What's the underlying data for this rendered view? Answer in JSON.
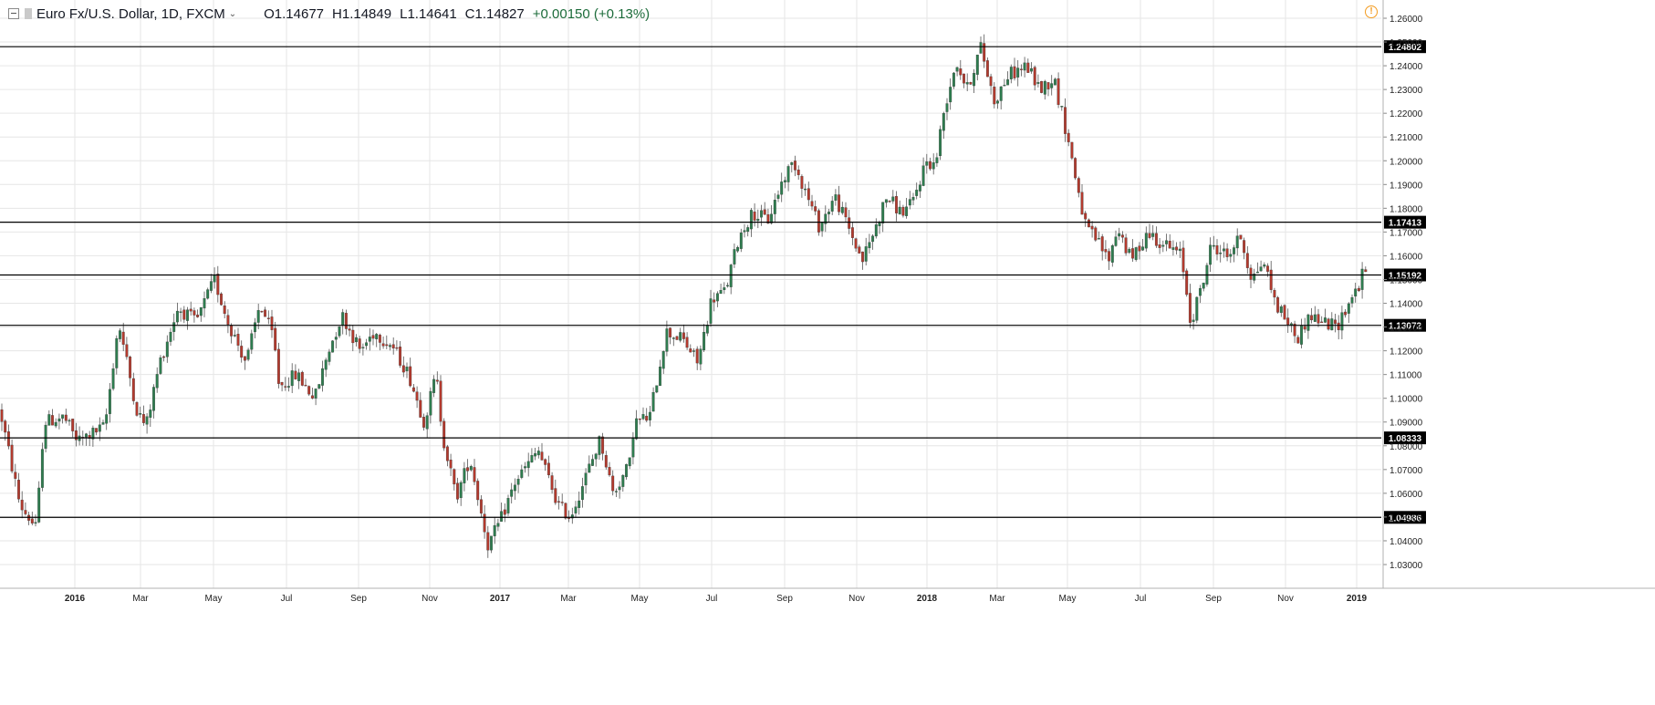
{
  "header": {
    "title": "Euro Fx/U.S. Dollar, 1D, FXCM",
    "chevron": "⌄",
    "ohlc": [
      {
        "key": "O",
        "value": "1.14677"
      },
      {
        "key": "H",
        "value": "1.14849"
      },
      {
        "key": "L",
        "value": "1.14641"
      },
      {
        "key": "C",
        "value": "1.14827"
      }
    ],
    "change": "+0.00150 (+0.13%)",
    "warning_icon": "warning-icon",
    "warning_glyph": "!"
  },
  "colors": {
    "up": "#2e7d4f",
    "down": "#b33a2e",
    "grid": "#e6e6e6",
    "hline": "#000000",
    "wick": "#555555"
  },
  "chart_data": {
    "type": "candlestick",
    "title": "Euro Fx/U.S. Dollar, 1D, FXCM",
    "ylim": [
      1.025,
      1.264
    ],
    "y_ticks": [
      "1.26000",
      "1.25000",
      "1.24000",
      "1.23000",
      "1.22000",
      "1.21000",
      "1.20000",
      "1.19000",
      "1.18000",
      "1.17000",
      "1.16000",
      "1.15000",
      "1.14000",
      "1.13000",
      "1.12000",
      "1.11000",
      "1.10000",
      "1.09000",
      "1.08000",
      "1.07000",
      "1.06000",
      "1.05000",
      "1.04000",
      "1.03000"
    ],
    "x_ticks": [
      {
        "label": "2016",
        "bold": true
      },
      {
        "label": "Mar",
        "bold": false
      },
      {
        "label": "May",
        "bold": false
      },
      {
        "label": "Jul",
        "bold": false
      },
      {
        "label": "Sep",
        "bold": false
      },
      {
        "label": "Nov",
        "bold": false
      },
      {
        "label": "2017",
        "bold": true
      },
      {
        "label": "Mar",
        "bold": false
      },
      {
        "label": "May",
        "bold": false
      },
      {
        "label": "Jul",
        "bold": false
      },
      {
        "label": "Sep",
        "bold": false
      },
      {
        "label": "Nov",
        "bold": false
      },
      {
        "label": "2018",
        "bold": true
      },
      {
        "label": "Mar",
        "bold": false
      },
      {
        "label": "May",
        "bold": false
      },
      {
        "label": "Jul",
        "bold": false
      },
      {
        "label": "Sep",
        "bold": false
      },
      {
        "label": "Nov",
        "bold": false
      },
      {
        "label": "2019",
        "bold": true
      }
    ],
    "horizontal_levels": [
      "1.24802",
      "1.17413",
      "1.15192",
      "1.13072",
      "1.08333",
      "1.04986"
    ],
    "price_path": [
      [
        0,
        1.095
      ],
      [
        22,
        1.055
      ],
      [
        40,
        1.045
      ],
      [
        48,
        1.09
      ],
      [
        70,
        1.092
      ],
      [
        85,
        1.082
      ],
      [
        115,
        1.088
      ],
      [
        130,
        1.132
      ],
      [
        150,
        1.095
      ],
      [
        160,
        1.088
      ],
      [
        175,
        1.115
      ],
      [
        195,
        1.138
      ],
      [
        215,
        1.132
      ],
      [
        235,
        1.15
      ],
      [
        250,
        1.132
      ],
      [
        270,
        1.115
      ],
      [
        285,
        1.14
      ],
      [
        300,
        1.125
      ],
      [
        306,
        1.105
      ],
      [
        325,
        1.11
      ],
      [
        345,
        1.1
      ],
      [
        360,
        1.12
      ],
      [
        375,
        1.135
      ],
      [
        395,
        1.12
      ],
      [
        410,
        1.128
      ],
      [
        430,
        1.122
      ],
      [
        448,
        1.11
      ],
      [
        465,
        1.09
      ],
      [
        478,
        1.11
      ],
      [
        485,
        1.085
      ],
      [
        500,
        1.058
      ],
      [
        515,
        1.075
      ],
      [
        535,
        1.038
      ],
      [
        548,
        1.048
      ],
      [
        565,
        1.065
      ],
      [
        590,
        1.078
      ],
      [
        612,
        1.055
      ],
      [
        625,
        1.05
      ],
      [
        640,
        1.065
      ],
      [
        658,
        1.083
      ],
      [
        672,
        1.06
      ],
      [
        690,
        1.072
      ],
      [
        695,
        1.09
      ],
      [
        712,
        1.092
      ],
      [
        730,
        1.128
      ],
      [
        748,
        1.125
      ],
      [
        765,
        1.115
      ],
      [
        780,
        1.142
      ],
      [
        795,
        1.145
      ],
      [
        810,
        1.168
      ],
      [
        825,
        1.178
      ],
      [
        842,
        1.175
      ],
      [
        858,
        1.192
      ],
      [
        870,
        1.2
      ],
      [
        882,
        1.188
      ],
      [
        898,
        1.172
      ],
      [
        915,
        1.185
      ],
      [
        930,
        1.172
      ],
      [
        945,
        1.158
      ],
      [
        960,
        1.172
      ],
      [
        972,
        1.185
      ],
      [
        988,
        1.178
      ],
      [
        1000,
        1.182
      ],
      [
        1015,
        1.2
      ],
      [
        1025,
        1.198
      ],
      [
        1035,
        1.222
      ],
      [
        1048,
        1.242
      ],
      [
        1060,
        1.23
      ],
      [
        1075,
        1.248
      ],
      [
        1090,
        1.225
      ],
      [
        1105,
        1.236
      ],
      [
        1125,
        1.24
      ],
      [
        1140,
        1.23
      ],
      [
        1155,
        1.235
      ],
      [
        1170,
        1.21
      ],
      [
        1190,
        1.172
      ],
      [
        1205,
        1.165
      ],
      [
        1215,
        1.158
      ],
      [
        1225,
        1.172
      ],
      [
        1240,
        1.158
      ],
      [
        1258,
        1.17
      ],
      [
        1275,
        1.165
      ],
      [
        1295,
        1.16
      ],
      [
        1305,
        1.132
      ],
      [
        1318,
        1.148
      ],
      [
        1328,
        1.165
      ],
      [
        1345,
        1.16
      ],
      [
        1360,
        1.168
      ],
      [
        1372,
        1.15
      ],
      [
        1385,
        1.158
      ],
      [
        1398,
        1.14
      ],
      [
        1412,
        1.132
      ],
      [
        1422,
        1.125
      ],
      [
        1435,
        1.135
      ],
      [
        1450,
        1.132
      ],
      [
        1465,
        1.13
      ],
      [
        1478,
        1.14
      ],
      [
        1490,
        1.148
      ],
      [
        1496,
        1.155
      ],
      [
        1500,
        1.148
      ]
    ]
  }
}
